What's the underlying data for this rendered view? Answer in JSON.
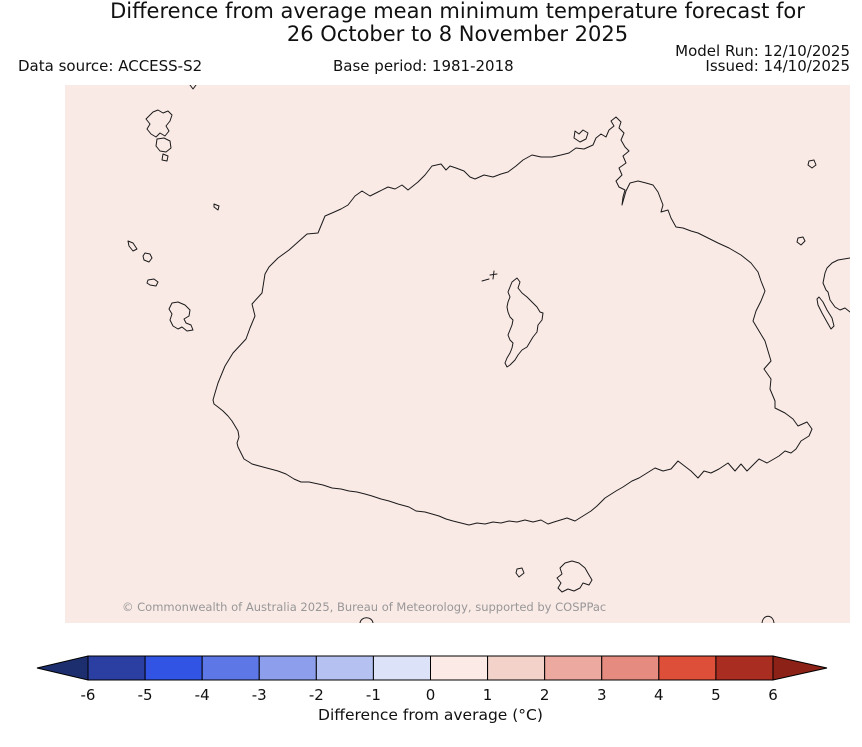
{
  "header": {
    "title_line1": "Difference from average mean minimum temperature forecast for",
    "title_line2": "26 October to 8 November 2025",
    "data_source": "Data source: ACCESS-S2",
    "base_period": "Base period: 1981-2018",
    "model_run": "Model Run: 12/10/2025",
    "issued": "Issued: 14/10/2025"
  },
  "map": {
    "copyright": "© Commonwealth of Australia 2025, Bureau of Meteorology, supported by COSPPac",
    "background_color": "#faeae6",
    "coastline_color": "#1a1a1a"
  },
  "colorbar": {
    "label": "Difference from average (°C)",
    "ticks": [
      "-6",
      "-5",
      "-4",
      "-3",
      "-2",
      "-1",
      "0",
      "1",
      "2",
      "3",
      "4",
      "5",
      "6"
    ],
    "segment_colors": [
      "#2b3ea1",
      "#3154e4",
      "#5d77e6",
      "#8d9eec",
      "#b4c1f1",
      "#dce2f8",
      "#fbeae5",
      "#f3d2c9",
      "#eca99f",
      "#e68b7f",
      "#de4f3a",
      "#aa2d22"
    ],
    "under_arrow_color": "#1d2e6e",
    "over_arrow_color": "#8c2217",
    "outline_color": "#000000"
  }
}
